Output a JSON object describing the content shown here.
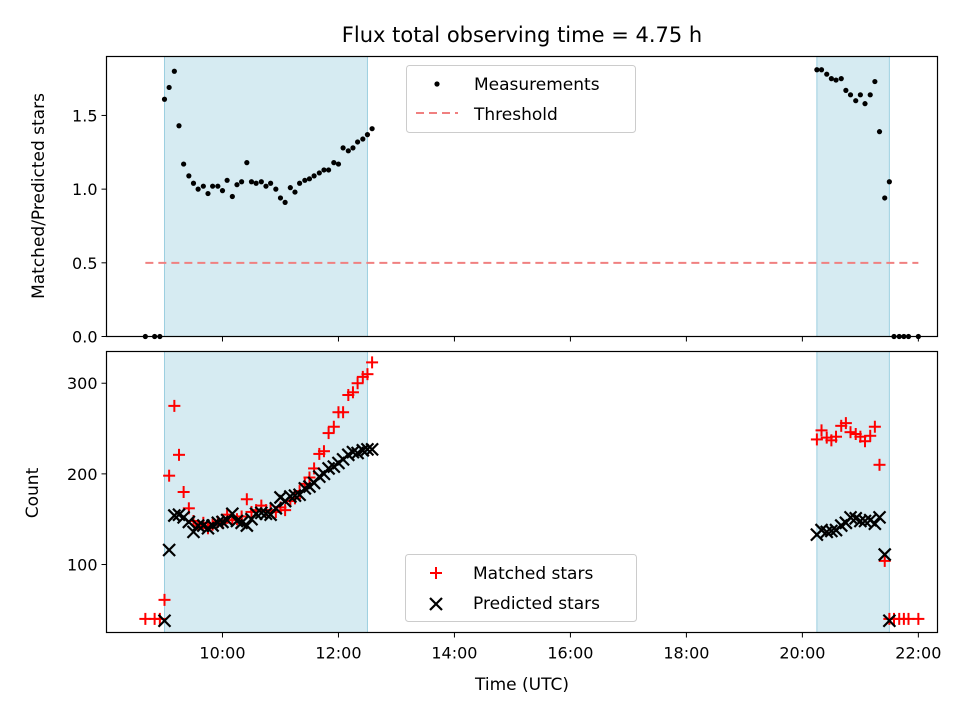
{
  "chart_data": {
    "type": "scatter",
    "title": "Flux total observing time = 4.75 h",
    "xlabel": "Time (UTC)",
    "x_unit": "hours UTC",
    "xlim": [
      8.0,
      22.33
    ],
    "x_ticks": [
      10,
      12,
      14,
      16,
      18,
      20,
      22
    ],
    "x_tick_labels": [
      "10:00",
      "12:00",
      "14:00",
      "16:00",
      "18:00",
      "20:00",
      "22:00"
    ],
    "observing_windows": [
      [
        9.0,
        12.5
      ],
      [
        20.25,
        21.5
      ]
    ],
    "top_panel": {
      "ylabel": "Matched/Predicted stars",
      "ylim": [
        0,
        1.9
      ],
      "y_ticks": [
        0,
        0.5,
        1.0,
        1.5
      ],
      "y_tick_labels": [
        "0.0",
        "0.5",
        "1.0",
        "1.5"
      ],
      "legend": {
        "location": "upper center",
        "entries": [
          "Measurements",
          "Threshold"
        ]
      },
      "threshold": {
        "name": "Threshold",
        "value": 0.5,
        "x_range": [
          8.67,
          22.0
        ],
        "color": "#f08080"
      },
      "series": [
        {
          "name": "Measurements",
          "color": "#000000",
          "points": [
            [
              8.67,
              0
            ],
            [
              8.83,
              0
            ],
            [
              8.92,
              0
            ],
            [
              9.0,
              1.61
            ],
            [
              9.08,
              1.69
            ],
            [
              9.17,
              1.8
            ],
            [
              9.25,
              1.43
            ],
            [
              9.33,
              1.17
            ],
            [
              9.42,
              1.09
            ],
            [
              9.5,
              1.04
            ],
            [
              9.58,
              1.0
            ],
            [
              9.67,
              1.02
            ],
            [
              9.75,
              0.97
            ],
            [
              9.83,
              1.02
            ],
            [
              9.92,
              1.02
            ],
            [
              10.0,
              0.99
            ],
            [
              10.08,
              1.06
            ],
            [
              10.17,
              0.95
            ],
            [
              10.25,
              1.03
            ],
            [
              10.33,
              1.05
            ],
            [
              10.42,
              1.18
            ],
            [
              10.5,
              1.05
            ],
            [
              10.58,
              1.04
            ],
            [
              10.67,
              1.05
            ],
            [
              10.75,
              1.02
            ],
            [
              10.83,
              1.04
            ],
            [
              10.92,
              1.0
            ],
            [
              11.0,
              0.94
            ],
            [
              11.08,
              0.91
            ],
            [
              11.17,
              1.01
            ],
            [
              11.25,
              0.98
            ],
            [
              11.33,
              1.04
            ],
            [
              11.42,
              1.06
            ],
            [
              11.5,
              1.07
            ],
            [
              11.58,
              1.09
            ],
            [
              11.67,
              1.11
            ],
            [
              11.75,
              1.13
            ],
            [
              11.83,
              1.13
            ],
            [
              11.92,
              1.18
            ],
            [
              12.0,
              1.17
            ],
            [
              12.08,
              1.28
            ],
            [
              12.17,
              1.26
            ],
            [
              12.25,
              1.28
            ],
            [
              12.33,
              1.32
            ],
            [
              12.42,
              1.34
            ],
            [
              12.5,
              1.37
            ],
            [
              12.58,
              1.41
            ],
            [
              20.25,
              1.81
            ],
            [
              20.33,
              1.81
            ],
            [
              20.42,
              1.78
            ],
            [
              20.5,
              1.75
            ],
            [
              20.58,
              1.74
            ],
            [
              20.67,
              1.75
            ],
            [
              20.75,
              1.67
            ],
            [
              20.83,
              1.64
            ],
            [
              20.92,
              1.6
            ],
            [
              21.0,
              1.64
            ],
            [
              21.08,
              1.58
            ],
            [
              21.17,
              1.64
            ],
            [
              21.25,
              1.73
            ],
            [
              21.33,
              1.39
            ],
            [
              21.42,
              0.94
            ],
            [
              21.5,
              1.05
            ],
            [
              21.58,
              0
            ],
            [
              21.67,
              0
            ],
            [
              21.75,
              0
            ],
            [
              21.83,
              0
            ],
            [
              22.0,
              0
            ]
          ]
        }
      ]
    },
    "bottom_panel": {
      "ylabel": "Count",
      "ylim": [
        25,
        335
      ],
      "y_ticks": [
        100,
        200,
        300
      ],
      "y_tick_labels": [
        "100",
        "200",
        "300"
      ],
      "legend": {
        "location": "lower center",
        "entries": [
          "Matched stars",
          "Predicted stars"
        ]
      },
      "series": [
        {
          "name": "Matched stars",
          "marker": "plus",
          "color": "#ff0000",
          "points": [
            [
              8.67,
              40
            ],
            [
              8.83,
              40
            ],
            [
              8.92,
              40
            ],
            [
              9.0,
              61
            ],
            [
              9.08,
              198
            ],
            [
              9.17,
              275
            ],
            [
              9.25,
              221
            ],
            [
              9.33,
              180
            ],
            [
              9.42,
              162
            ],
            [
              9.5,
              148
            ],
            [
              9.58,
              143
            ],
            [
              9.67,
              146
            ],
            [
              9.75,
              140
            ],
            [
              9.83,
              144
            ],
            [
              9.92,
              147
            ],
            [
              10.0,
              146
            ],
            [
              10.08,
              155
            ],
            [
              10.17,
              149
            ],
            [
              10.25,
              150
            ],
            [
              10.33,
              153
            ],
            [
              10.42,
              172
            ],
            [
              10.5,
              158
            ],
            [
              10.58,
              160
            ],
            [
              10.67,
              165
            ],
            [
              10.75,
              160
            ],
            [
              10.83,
              160
            ],
            [
              10.92,
              158
            ],
            [
              11.0,
              163
            ],
            [
              11.08,
              160
            ],
            [
              11.17,
              170
            ],
            [
              11.25,
              173
            ],
            [
              11.33,
              181
            ],
            [
              11.42,
              189
            ],
            [
              11.5,
              196
            ],
            [
              11.58,
              206
            ],
            [
              11.67,
              222
            ],
            [
              11.75,
              225
            ],
            [
              11.83,
              245
            ],
            [
              11.92,
              252
            ],
            [
              12.0,
              268
            ],
            [
              12.08,
              268
            ],
            [
              12.17,
              287
            ],
            [
              12.25,
              290
            ],
            [
              12.33,
              300
            ],
            [
              12.42,
              307
            ],
            [
              12.5,
              310
            ],
            [
              12.58,
              323
            ],
            [
              20.25,
              238
            ],
            [
              20.33,
              248
            ],
            [
              20.42,
              240
            ],
            [
              20.5,
              237
            ],
            [
              20.58,
              241
            ],
            [
              20.67,
              253
            ],
            [
              20.75,
              256
            ],
            [
              20.83,
              246
            ],
            [
              20.92,
              244
            ],
            [
              21.0,
              241
            ],
            [
              21.08,
              236
            ],
            [
              21.17,
              242
            ],
            [
              21.25,
              252
            ],
            [
              21.33,
              210
            ],
            [
              21.42,
              104
            ],
            [
              21.5,
              40
            ],
            [
              21.58,
              40
            ],
            [
              21.67,
              40
            ],
            [
              21.75,
              40
            ],
            [
              21.83,
              40
            ],
            [
              22.0,
              40
            ]
          ]
        },
        {
          "name": "Predicted stars",
          "marker": "x",
          "color": "#000000",
          "points": [
            [
              9.0,
              38
            ],
            [
              9.08,
              116
            ],
            [
              9.17,
              154
            ],
            [
              9.25,
              155
            ],
            [
              9.33,
              152
            ],
            [
              9.42,
              147
            ],
            [
              9.5,
              136
            ],
            [
              9.58,
              143
            ],
            [
              9.67,
              143
            ],
            [
              9.75,
              140
            ],
            [
              9.83,
              143
            ],
            [
              9.92,
              146
            ],
            [
              10.0,
              147
            ],
            [
              10.08,
              149
            ],
            [
              10.17,
              156
            ],
            [
              10.25,
              148
            ],
            [
              10.33,
              146
            ],
            [
              10.42,
              143
            ],
            [
              10.5,
              150
            ],
            [
              10.58,
              156
            ],
            [
              10.67,
              157
            ],
            [
              10.75,
              156
            ],
            [
              10.83,
              155
            ],
            [
              10.92,
              162
            ],
            [
              11.0,
              174
            ],
            [
              11.08,
              170
            ],
            [
              11.17,
              175
            ],
            [
              11.25,
              176
            ],
            [
              11.33,
              177
            ],
            [
              11.42,
              184
            ],
            [
              11.5,
              186
            ],
            [
              11.58,
              190
            ],
            [
              11.67,
              197
            ],
            [
              11.75,
              200
            ],
            [
              11.83,
              206
            ],
            [
              11.92,
              208
            ],
            [
              12.0,
              212
            ],
            [
              12.08,
              216
            ],
            [
              12.17,
              221
            ],
            [
              12.25,
              224
            ],
            [
              12.33,
              223
            ],
            [
              12.42,
              226
            ],
            [
              12.5,
              227
            ],
            [
              12.58,
              227
            ],
            [
              20.25,
              133
            ],
            [
              20.33,
              138
            ],
            [
              20.42,
              136
            ],
            [
              20.5,
              137
            ],
            [
              20.58,
              138
            ],
            [
              20.67,
              143
            ],
            [
              20.75,
              146
            ],
            [
              20.83,
              152
            ],
            [
              20.92,
              151
            ],
            [
              21.0,
              148
            ],
            [
              21.08,
              148
            ],
            [
              21.17,
              149
            ],
            [
              21.25,
              145
            ],
            [
              21.33,
              152
            ],
            [
              21.42,
              111
            ],
            [
              21.5,
              38
            ]
          ]
        }
      ]
    }
  }
}
